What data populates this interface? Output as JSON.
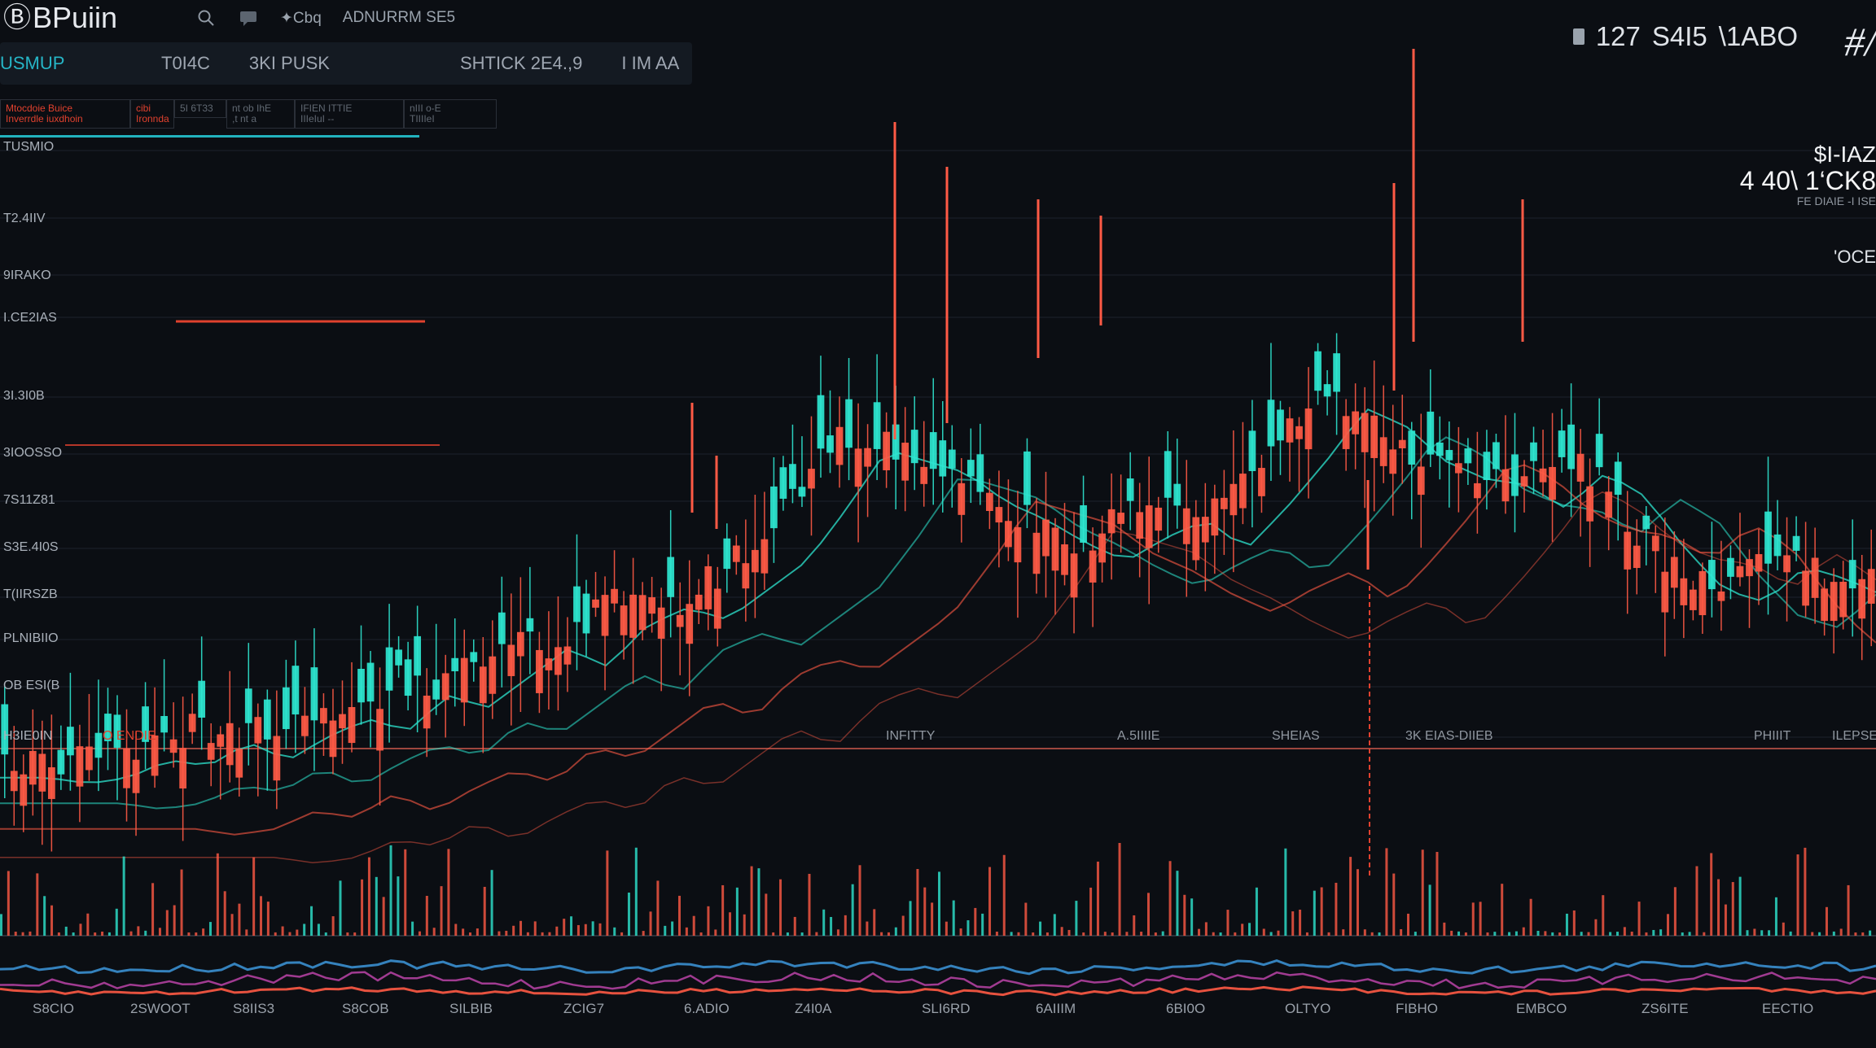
{
  "topbar": {
    "logo_glyph": "Ⓑ",
    "app_name": "BPuiin",
    "icons": [
      "search-icon",
      "chat-icon"
    ],
    "menu_1": "✦Cbq",
    "menu_2": "ADNURRM SE5",
    "ticker": [
      "127",
      "S4I5",
      "\\1ABO"
    ],
    "brand_mark": "#/"
  },
  "toolbar": {
    "symbol": "USMUP",
    "items": [
      "T0I4C",
      "3KI PUSK",
      "SHTICK 2E4.,9",
      "I IM AA"
    ]
  },
  "subbar": {
    "chips": [
      {
        "label": "Mtocdoie Buice\nInverrdle iuxdhoin",
        "muted": false
      },
      {
        "label": "cibi\nIronnda",
        "muted": false
      },
      {
        "label": "5I 6T33",
        "muted": true
      },
      {
        "label": "nt ob IhE\n  ,t nt a",
        "muted": true
      },
      {
        "label": "IFIEN ITTIE\nIIIeIuI ‐‐",
        "muted": true
      },
      {
        "label": "nIII o‐E\nTIIIIeI",
        "muted": true
      }
    ]
  },
  "y_labels": [
    "TUSMIO",
    "T2.4IIV",
    "9IRAKO",
    "I.CE2IAS",
    "3I.3I0B",
    "3IOOSSO",
    "7S11Z81",
    "S3E.4I0S",
    "T(IIRSZB",
    "PLNIBIIO",
    "OB ESI(B",
    "H3IE0IN"
  ],
  "mid_axis_labels": [
    "O ENDIE",
    "INFITTY",
    "A.5IIIIE",
    "SHEIAS",
    "3K EIAS‐DIIEB",
    "PHIIIT",
    "ILEPSE"
  ],
  "x_labels": [
    "S8CIO",
    "2SWOOT",
    "S8IIS3",
    "S8COB",
    "SILBIB",
    "ZCIG7",
    "6.ADIO",
    "Z4I0A",
    "SLI6RD",
    "6AIIIM",
    "6BI0O",
    "OLTYO",
    "FIBHO",
    "EMBCO",
    "ZS6ITE",
    "EECTIO"
  ],
  "right_readout": {
    "line1": "$I‐IAZ",
    "line2": "4 40\\ 1‘CK8",
    "line3": "FE DIAIE ‐I ISE",
    "line4": "'OCE"
  },
  "colors": {
    "background": "#0b0e13",
    "bear": "#ff5a45",
    "bull": "#2ee6d0",
    "accent_teal": "#22b3be",
    "accent_red": "#e0412e",
    "grid": "#1d232c"
  },
  "chart_data": {
    "type": "candlestick",
    "title": "",
    "xlabel": "",
    "ylabel": "",
    "trend": [
      0.16,
      0.15,
      0.16,
      0.19,
      0.18,
      0.22,
      0.19,
      0.23,
      0.26,
      0.24,
      0.3,
      0.28,
      0.33,
      0.38,
      0.35,
      0.42,
      0.45,
      0.43,
      0.48,
      0.53,
      0.62,
      0.72,
      0.7,
      0.68,
      0.63,
      0.6,
      0.56,
      0.53,
      0.57,
      0.6,
      0.55,
      0.62,
      0.7,
      0.79,
      0.76,
      0.7,
      0.67,
      0.66,
      0.62,
      0.68,
      0.64,
      0.55,
      0.48,
      0.46,
      0.52,
      0.5,
      0.47,
      0.49
    ]
  }
}
